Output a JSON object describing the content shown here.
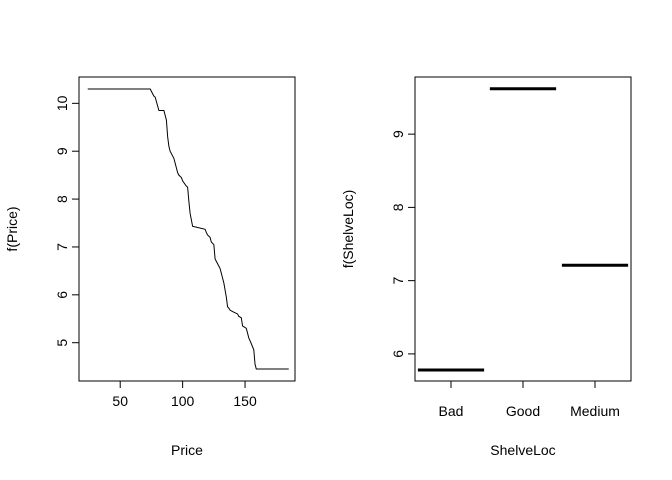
{
  "chart_data": [
    {
      "type": "line",
      "xlabel": "Price",
      "ylabel": "f(Price)",
      "xlim": [
        17,
        190
      ],
      "ylim": [
        4.2,
        10.55
      ],
      "xticks": [
        50,
        100,
        150
      ],
      "yticks": [
        5,
        6,
        7,
        8,
        9,
        10
      ],
      "x": [
        24,
        74,
        77,
        78,
        81,
        85,
        87,
        88,
        89,
        90,
        93,
        94,
        96,
        97,
        99,
        100,
        103,
        104,
        105,
        106,
        108,
        110,
        118,
        119,
        120,
        122,
        123,
        125,
        126,
        128,
        130,
        133,
        135,
        136,
        137,
        138,
        140,
        144,
        145,
        147,
        148,
        151,
        152,
        153,
        155,
        157,
        158,
        159,
        160,
        185
      ],
      "y": [
        10.3,
        10.3,
        10.15,
        10.13,
        9.85,
        9.85,
        9.65,
        9.3,
        9.1,
        9.0,
        8.85,
        8.75,
        8.55,
        8.5,
        8.45,
        8.38,
        8.27,
        8.25,
        7.95,
        7.7,
        7.43,
        7.42,
        7.37,
        7.3,
        7.25,
        7.2,
        7.1,
        7.05,
        6.75,
        6.65,
        6.55,
        6.25,
        5.95,
        5.75,
        5.72,
        5.68,
        5.65,
        5.6,
        5.55,
        5.52,
        5.35,
        5.3,
        5.2,
        5.1,
        4.98,
        4.85,
        4.55,
        4.45,
        4.45,
        4.45
      ]
    },
    {
      "type": "bar",
      "xlabel": "ShelveLoc",
      "ylabel": "f(ShelveLoc)",
      "categories": [
        "Bad",
        "Good",
        "Medium"
      ],
      "values": [
        5.78,
        9.62,
        7.21
      ],
      "ylim": [
        5.63,
        9.78
      ],
      "yticks": [
        6,
        7,
        8,
        9
      ]
    }
  ]
}
